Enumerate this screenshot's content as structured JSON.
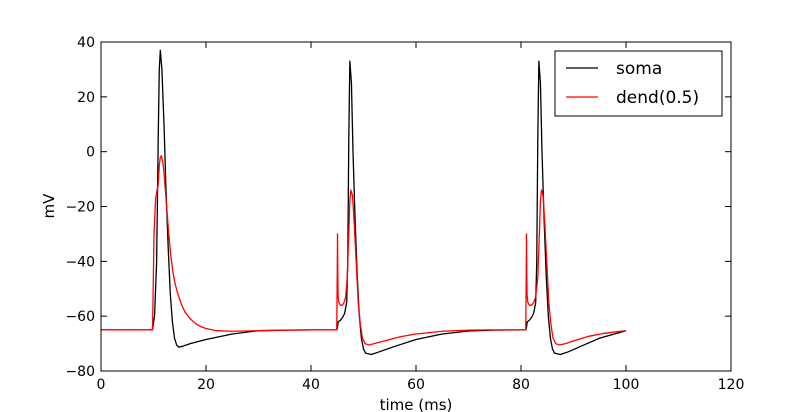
{
  "chart_data": {
    "type": "line",
    "title": "",
    "xlabel": "time (ms)",
    "ylabel": "mV",
    "xlim": [
      0,
      120
    ],
    "ylim": [
      -80,
      40
    ],
    "x_ticks": [
      0,
      20,
      40,
      60,
      80,
      100,
      120
    ],
    "y_ticks": [
      -80,
      -60,
      -40,
      -20,
      0,
      20,
      40
    ],
    "grid": false,
    "legend_position": "top-right",
    "series": [
      {
        "name": "soma",
        "color": "#000000",
        "x": [
          0,
          9.8,
          10.2,
          10.6,
          10.9,
          11.1,
          11.3,
          11.6,
          12.0,
          12.4,
          12.8,
          13.2,
          13.6,
          14.0,
          14.4,
          14.8,
          15.5,
          17,
          20,
          25,
          30,
          35,
          40,
          44.9,
          45.0,
          45.05,
          45.2,
          45.6,
          46.0,
          46.4,
          46.8,
          47.0,
          47.2,
          47.4,
          47.7,
          48.0,
          48.4,
          48.8,
          49.2,
          49.6,
          50.0,
          50.4,
          51.5,
          53,
          56,
          60,
          65,
          70,
          75,
          80,
          80.9,
          81.0,
          81.05,
          81.2,
          81.6,
          82.0,
          82.4,
          82.8,
          83.0,
          83.2,
          83.4,
          83.7,
          84.0,
          84.4,
          84.8,
          85.2,
          85.6,
          86.0,
          86.4,
          87.5,
          89,
          92,
          95,
          100
        ],
        "y": [
          -65,
          -65,
          -60,
          -40,
          5,
          30,
          37,
          30,
          10,
          -15,
          -35,
          -52,
          -62,
          -68,
          -70.5,
          -71.3,
          -71,
          -70,
          -68.5,
          -66.5,
          -65.3,
          -65.1,
          -65,
          -65,
          -64.5,
          -64,
          -62,
          -61.5,
          -60.5,
          -59,
          -55,
          -40,
          5,
          33,
          25,
          0,
          -25,
          -45,
          -60,
          -68,
          -72,
          -73.5,
          -74,
          -73,
          -71,
          -68.5,
          -66.5,
          -65.4,
          -65.1,
          -65,
          -65,
          -64.5,
          -64,
          -62,
          -61.5,
          -60.5,
          -59,
          -55,
          -40,
          5,
          33,
          25,
          0,
          -25,
          -45,
          -60,
          -68,
          -72,
          -73.5,
          -74,
          -73,
          -70.5,
          -68,
          -65.3
        ]
      },
      {
        "name": "dend(0.5)",
        "color": "#ff0000",
        "x": [
          0,
          9.8,
          9.9,
          10.1,
          10.4,
          10.7,
          10.9,
          11.1,
          11.3,
          11.5,
          11.8,
          12.1,
          12.5,
          12.9,
          13.3,
          13.7,
          14.1,
          14.5,
          15,
          15.5,
          16,
          17,
          18,
          19,
          20,
          22,
          25,
          30,
          40,
          44.9,
          45.0,
          45.05,
          45.1,
          45.15,
          45.3,
          45.6,
          46.0,
          46.3,
          46.6,
          46.9,
          47.2,
          47.4,
          47.6,
          47.9,
          48.2,
          48.6,
          49.0,
          49.4,
          49.8,
          50.3,
          51,
          52,
          54,
          57,
          60,
          65,
          70,
          75,
          80,
          80.9,
          81.0,
          81.05,
          81.1,
          81.15,
          81.3,
          81.6,
          82.0,
          82.4,
          82.8,
          83.2,
          83.5,
          83.7,
          83.9,
          84.2,
          84.5,
          84.9,
          85.3,
          85.7,
          86.1,
          86.6,
          87.3,
          88.5,
          90,
          93,
          96,
          100
        ],
        "y": [
          -65,
          -65,
          -55,
          -30,
          -17,
          -14,
          -12,
          -5,
          -2,
          -1.5,
          -4,
          -10,
          -20,
          -30,
          -38,
          -44,
          -48,
          -51,
          -54,
          -56.5,
          -58.5,
          -61,
          -62.7,
          -63.8,
          -64.5,
          -65.3,
          -65.5,
          -65.3,
          -65,
          -65,
          -44,
          -30,
          -44,
          -52,
          -55,
          -56,
          -56,
          -55,
          -53,
          -46,
          -30,
          -18,
          -14,
          -16,
          -25,
          -40,
          -55,
          -63,
          -68,
          -70,
          -70.5,
          -70,
          -69,
          -67.5,
          -66.5,
          -65.5,
          -65.1,
          -65,
          -65,
          -65,
          -44,
          -30,
          -44,
          -52,
          -55,
          -56,
          -56,
          -55,
          -53,
          -46,
          -30,
          -18,
          -14,
          -16,
          -25,
          -40,
          -55,
          -63,
          -68,
          -70,
          -70.5,
          -70,
          -69,
          -67.3,
          -66.2,
          -65.3
        ]
      }
    ]
  }
}
